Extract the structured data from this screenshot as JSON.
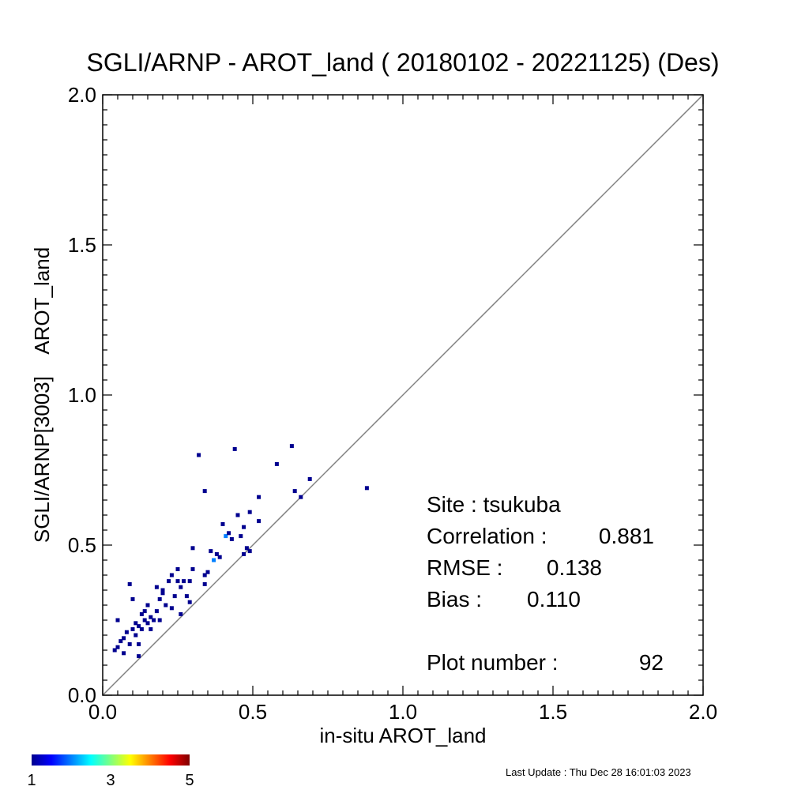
{
  "chart_data": {
    "type": "scatter",
    "title": "SGLI/ARNP - AROT_land ( 20180102 - 20221125) (Des)",
    "xlabel": "in-situ AROT_land",
    "ylabel": "SGLI/ARNP[3003]    AROT_land",
    "xlim": [
      0.0,
      2.0
    ],
    "ylim": [
      0.0,
      2.0
    ],
    "xticks": [
      "0.0",
      "0.5",
      "1.0",
      "1.5",
      "2.0"
    ],
    "yticks": [
      "0.0",
      "0.5",
      "1.0",
      "1.5",
      "2.0"
    ],
    "x_major_step": 0.5,
    "minor_step": 0.05,
    "reference_line": "1:1",
    "grid": false,
    "series": [
      {
        "points": [
          [
            0.04,
            0.15,
            1
          ],
          [
            0.05,
            0.16,
            1
          ],
          [
            0.05,
            0.25,
            1
          ],
          [
            0.06,
            0.18,
            1
          ],
          [
            0.07,
            0.19,
            1
          ],
          [
            0.07,
            0.14,
            1
          ],
          [
            0.08,
            0.21,
            1
          ],
          [
            0.09,
            0.17,
            1
          ],
          [
            0.09,
            0.37,
            1
          ],
          [
            0.1,
            0.22,
            1
          ],
          [
            0.1,
            0.32,
            1
          ],
          [
            0.11,
            0.2,
            1
          ],
          [
            0.11,
            0.24,
            1
          ],
          [
            0.12,
            0.23,
            1
          ],
          [
            0.12,
            0.17,
            1
          ],
          [
            0.12,
            0.13,
            1
          ],
          [
            0.13,
            0.22,
            1
          ],
          [
            0.13,
            0.27,
            1
          ],
          [
            0.14,
            0.25,
            1
          ],
          [
            0.14,
            0.28,
            1
          ],
          [
            0.15,
            0.24,
            1
          ],
          [
            0.15,
            0.3,
            1
          ],
          [
            0.16,
            0.26,
            1
          ],
          [
            0.16,
            0.22,
            1
          ],
          [
            0.17,
            0.25,
            1
          ],
          [
            0.18,
            0.28,
            1
          ],
          [
            0.18,
            0.36,
            1
          ],
          [
            0.19,
            0.32,
            1
          ],
          [
            0.19,
            0.25,
            1
          ],
          [
            0.2,
            0.34,
            1
          ],
          [
            0.2,
            0.35,
            1
          ],
          [
            0.21,
            0.3,
            1
          ],
          [
            0.22,
            0.38,
            1
          ],
          [
            0.23,
            0.4,
            1
          ],
          [
            0.23,
            0.29,
            1
          ],
          [
            0.24,
            0.33,
            1
          ],
          [
            0.25,
            0.38,
            1
          ],
          [
            0.25,
            0.42,
            1
          ],
          [
            0.26,
            0.27,
            1
          ],
          [
            0.26,
            0.36,
            1
          ],
          [
            0.27,
            0.38,
            1
          ],
          [
            0.28,
            0.33,
            1
          ],
          [
            0.29,
            0.38,
            1
          ],
          [
            0.29,
            0.31,
            1
          ],
          [
            0.3,
            0.42,
            1
          ],
          [
            0.3,
            0.49,
            1
          ],
          [
            0.32,
            0.8,
            1
          ],
          [
            0.34,
            0.4,
            1
          ],
          [
            0.34,
            0.37,
            1
          ],
          [
            0.34,
            0.68,
            1
          ],
          [
            0.35,
            0.41,
            1
          ],
          [
            0.36,
            0.48,
            1
          ],
          [
            0.37,
            0.45,
            2
          ],
          [
            0.38,
            0.47,
            1
          ],
          [
            0.39,
            0.46,
            1
          ],
          [
            0.4,
            0.57,
            1
          ],
          [
            0.41,
            0.53,
            2
          ],
          [
            0.42,
            0.54,
            1
          ],
          [
            0.43,
            0.52,
            1
          ],
          [
            0.44,
            0.82,
            1
          ],
          [
            0.45,
            0.6,
            1
          ],
          [
            0.46,
            0.53,
            1
          ],
          [
            0.47,
            0.47,
            1
          ],
          [
            0.47,
            0.56,
            1
          ],
          [
            0.48,
            0.49,
            1
          ],
          [
            0.49,
            0.61,
            1
          ],
          [
            0.49,
            0.48,
            1
          ],
          [
            0.52,
            0.66,
            1
          ],
          [
            0.52,
            0.58,
            1
          ],
          [
            0.58,
            0.77,
            1
          ],
          [
            0.63,
            0.83,
            1
          ],
          [
            0.64,
            0.68,
            1
          ],
          [
            0.66,
            0.66,
            1
          ],
          [
            0.69,
            0.72,
            1
          ],
          [
            0.88,
            0.69,
            1
          ]
        ]
      }
    ],
    "colorbar": {
      "min": 1,
      "max": 5,
      "ticks": [
        "1",
        "3",
        "5"
      ],
      "colors": [
        "#00008f",
        "#0000ff",
        "#007fff",
        "#00ffff",
        "#7fff7f",
        "#ffff00",
        "#ff7f00",
        "#ff0000",
        "#7f0000"
      ]
    },
    "annotations": {
      "site": "Site : tsukuba",
      "correlation_label": "Correlation :",
      "correlation_value": "0.881",
      "rmse_label": "RMSE :",
      "rmse_value": "0.138",
      "bias_label": "Bias :",
      "bias_value": "0.110",
      "plot_number_label": "Plot number :",
      "plot_number_value": "92"
    },
    "line_color": "#808080",
    "marker_color": "#00008f"
  },
  "footer": {
    "last_update": "Last Update : Thu Dec 28 16:01:03 2023"
  }
}
